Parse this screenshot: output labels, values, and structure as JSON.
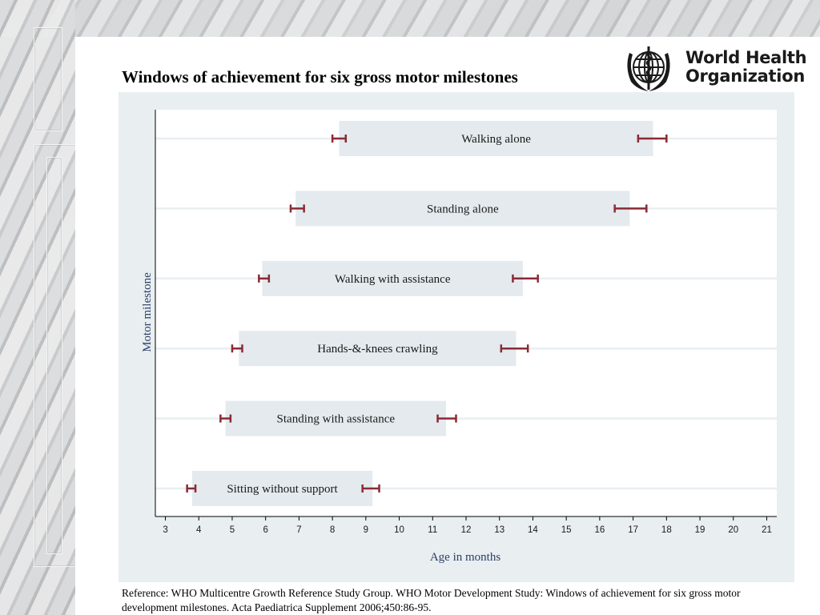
{
  "slide": {
    "title": "Windows of achievement for six gross motor milestones",
    "logo": {
      "line1": "World Health",
      "line2": "Organization",
      "icon": "who-emblem-icon"
    },
    "reference": "Reference: WHO Multicentre Growth Reference Study Group. WHO Motor Development Study: Windows of achievement for six gross motor development milestones. Acta Paediatrica Supplement 2006;450:86-95."
  },
  "colors": {
    "plot_background": "#ffffff",
    "outer_background": "#e9eef1",
    "window_bar": "#e4eaee",
    "whisker": "#8b2a35",
    "axis_title": "#2a3f66"
  },
  "chart_data": {
    "type": "bar",
    "orientation": "horizontal-range",
    "title": "Windows of achievement for six gross motor milestones",
    "xlabel": "Age in months",
    "ylabel": "Motor milestone",
    "xlim": [
      2.7,
      21.3
    ],
    "xticks": [
      3,
      4,
      5,
      6,
      7,
      8,
      9,
      10,
      11,
      12,
      13,
      14,
      15,
      16,
      17,
      18,
      19,
      20,
      21
    ],
    "grid": "horizontal",
    "categories": [
      "Sitting without support",
      "Standing with assistance",
      "Hands-&-knees crawling",
      "Walking with assistance",
      "Standing alone",
      "Walking alone"
    ],
    "windows": [
      {
        "label": "Sitting without support",
        "start": 3.8,
        "end": 9.2,
        "start_ci": [
          3.65,
          3.9
        ],
        "end_ci": [
          8.9,
          9.4
        ]
      },
      {
        "label": "Standing with assistance",
        "start": 4.8,
        "end": 11.4,
        "start_ci": [
          4.65,
          4.95
        ],
        "end_ci": [
          11.15,
          11.7
        ]
      },
      {
        "label": "Hands-&-knees crawling",
        "start": 5.2,
        "end": 13.5,
        "start_ci": [
          5.0,
          5.3
        ],
        "end_ci": [
          13.05,
          13.85
        ]
      },
      {
        "label": "Walking with assistance",
        "start": 5.9,
        "end": 13.7,
        "start_ci": [
          5.8,
          6.1
        ],
        "end_ci": [
          13.4,
          14.15
        ]
      },
      {
        "label": "Standing alone",
        "start": 6.9,
        "end": 16.9,
        "start_ci": [
          6.75,
          7.15
        ],
        "end_ci": [
          16.45,
          17.4
        ]
      },
      {
        "label": "Walking alone",
        "start": 8.2,
        "end": 17.6,
        "start_ci": [
          8.0,
          8.4
        ],
        "end_ci": [
          17.15,
          18.0
        ]
      }
    ]
  }
}
